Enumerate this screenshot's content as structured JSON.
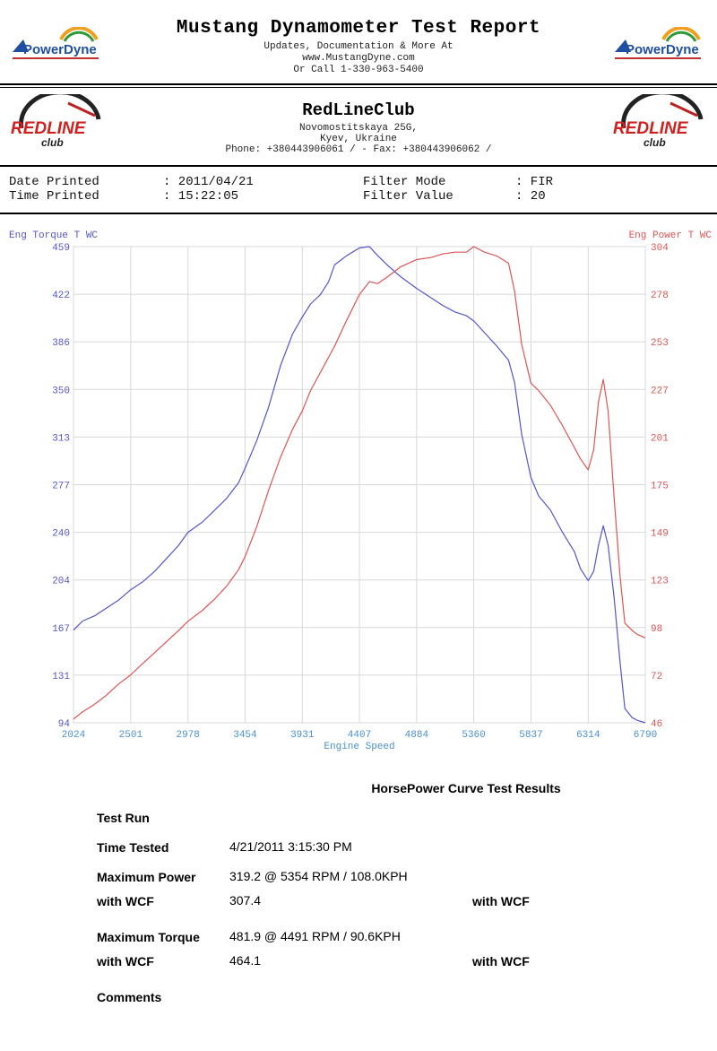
{
  "header": {
    "title": "Mustang Dynamometer Test Report",
    "line1": "Updates, Documentation & More At",
    "line2": "www.MustangDyne.com",
    "line3": "Or Call 1-330-963-5400",
    "logo_text": "PowerDyne"
  },
  "club": {
    "name": "RedLineClub",
    "address1": "Novomostitskaya 25G,",
    "address2": "Kyev, Ukraine",
    "phone": "Phone: +380443906061 /  - Fax: +380443906062 /",
    "logo_text_top": "REDLINE",
    "logo_text_bottom": "club"
  },
  "info": {
    "date_label": "Date Printed",
    "date_value": ": 2011/04/21",
    "time_label": "Time Printed",
    "time_value": ": 15:22:05",
    "filter_mode_label": "Filter Mode",
    "filter_mode_value": ": FIR",
    "filter_value_label": "Filter Value",
    "filter_value_value": ": 20"
  },
  "chart_data": {
    "type": "line",
    "xlabel": "Engine Speed",
    "x_ticks": [
      "2024",
      "2501",
      "2978",
      "3454",
      "3931",
      "4407",
      "4884",
      "5360",
      "5837",
      "6314",
      "6790"
    ],
    "xlim": [
      2024,
      6790
    ],
    "y_left_label": "Eng Torque T WC",
    "y_left_ticks": [
      "94",
      "131",
      "167",
      "204",
      "240",
      "277",
      "313",
      "350",
      "386",
      "422",
      "459"
    ],
    "y_left_lim": [
      94,
      459
    ],
    "y_right_label": "Eng Power T WC",
    "y_right_ticks": [
      "46",
      "72",
      "98",
      "123",
      "149",
      "175",
      "201",
      "227",
      "253",
      "278",
      "304"
    ],
    "y_right_lim": [
      46,
      304
    ],
    "grid": true,
    "colors": {
      "torque": "#5555cc",
      "power": "#dd5555",
      "grid": "#d8d8d8",
      "axis_text_left": "#5555cc",
      "axis_text_right": "#dd5555",
      "x_text": "#4a90d0"
    },
    "series": [
      {
        "name": "Eng Torque T WC",
        "axis": "left",
        "x": [
          2024,
          2100,
          2200,
          2300,
          2400,
          2501,
          2600,
          2700,
          2800,
          2900,
          2978,
          3100,
          3200,
          3300,
          3400,
          3454,
          3550,
          3650,
          3750,
          3850,
          3931,
          4000,
          4080,
          4150,
          4200,
          4300,
          4407,
          4491,
          4560,
          4650,
          4750,
          4884,
          5000,
          5100,
          5200,
          5300,
          5360,
          5450,
          5550,
          5650,
          5700,
          5760,
          5837,
          5900,
          6000,
          6100,
          6200,
          6250,
          6314,
          6360,
          6400,
          6440,
          6480,
          6530,
          6580,
          6620,
          6680,
          6720,
          6790
        ],
        "y": [
          165,
          172,
          176,
          182,
          188,
          196,
          202,
          210,
          220,
          230,
          240,
          248,
          257,
          266,
          278,
          289,
          310,
          336,
          368,
          392,
          405,
          415,
          422,
          432,
          445,
          452,
          458,
          459,
          452,
          444,
          436,
          427,
          420,
          414,
          409,
          406,
          402,
          393,
          383,
          372,
          355,
          315,
          282,
          268,
          257,
          240,
          225,
          212,
          203,
          210,
          230,
          245,
          230,
          190,
          140,
          105,
          98,
          96,
          94
        ]
      },
      {
        "name": "Eng Power T WC",
        "axis": "right",
        "x": [
          2024,
          2100,
          2200,
          2300,
          2400,
          2501,
          2600,
          2700,
          2800,
          2900,
          2978,
          3100,
          3200,
          3300,
          3400,
          3454,
          3550,
          3650,
          3750,
          3850,
          3931,
          4000,
          4100,
          4200,
          4300,
          4407,
          4491,
          4560,
          4650,
          4750,
          4884,
          5000,
          5100,
          5200,
          5300,
          5360,
          5450,
          5550,
          5650,
          5700,
          5760,
          5837,
          5900,
          6000,
          6100,
          6200,
          6250,
          6314,
          6360,
          6400,
          6440,
          6480,
          6530,
          6580,
          6620,
          6680,
          6720,
          6790
        ],
        "y": [
          48,
          52,
          56,
          61,
          67,
          72,
          78,
          84,
          90,
          96,
          101,
          107,
          113,
          120,
          129,
          136,
          152,
          172,
          190,
          205,
          215,
          226,
          238,
          250,
          264,
          278,
          285,
          284,
          288,
          293,
          297,
          298,
          300,
          301,
          301,
          304,
          301,
          299,
          295,
          280,
          251,
          230,
          226,
          218,
          207,
          195,
          189,
          183,
          194,
          220,
          232,
          215,
          168,
          125,
          100,
          96,
          94,
          92
        ]
      }
    ]
  },
  "results": {
    "title": "HorsePower Curve Test Results",
    "test_run_label": "Test Run",
    "time_tested_label": "Time Tested",
    "time_tested_value": "4/21/2011 3:15:30 PM",
    "max_power_label": "Maximum Power",
    "max_power_value": "319.2 @ 5354 RPM / 108.0KPH",
    "power_wcf_label": "with WCF",
    "power_wcf_value": "307.4",
    "power_wcf_label2": "with WCF",
    "max_torque_label": "Maximum Torque",
    "max_torque_value": "481.9 @ 4491 RPM / 90.6KPH",
    "torque_wcf_label": "with WCF",
    "torque_wcf_value": "464.1",
    "torque_wcf_label2": "with WCF",
    "comments_label": "Comments"
  }
}
